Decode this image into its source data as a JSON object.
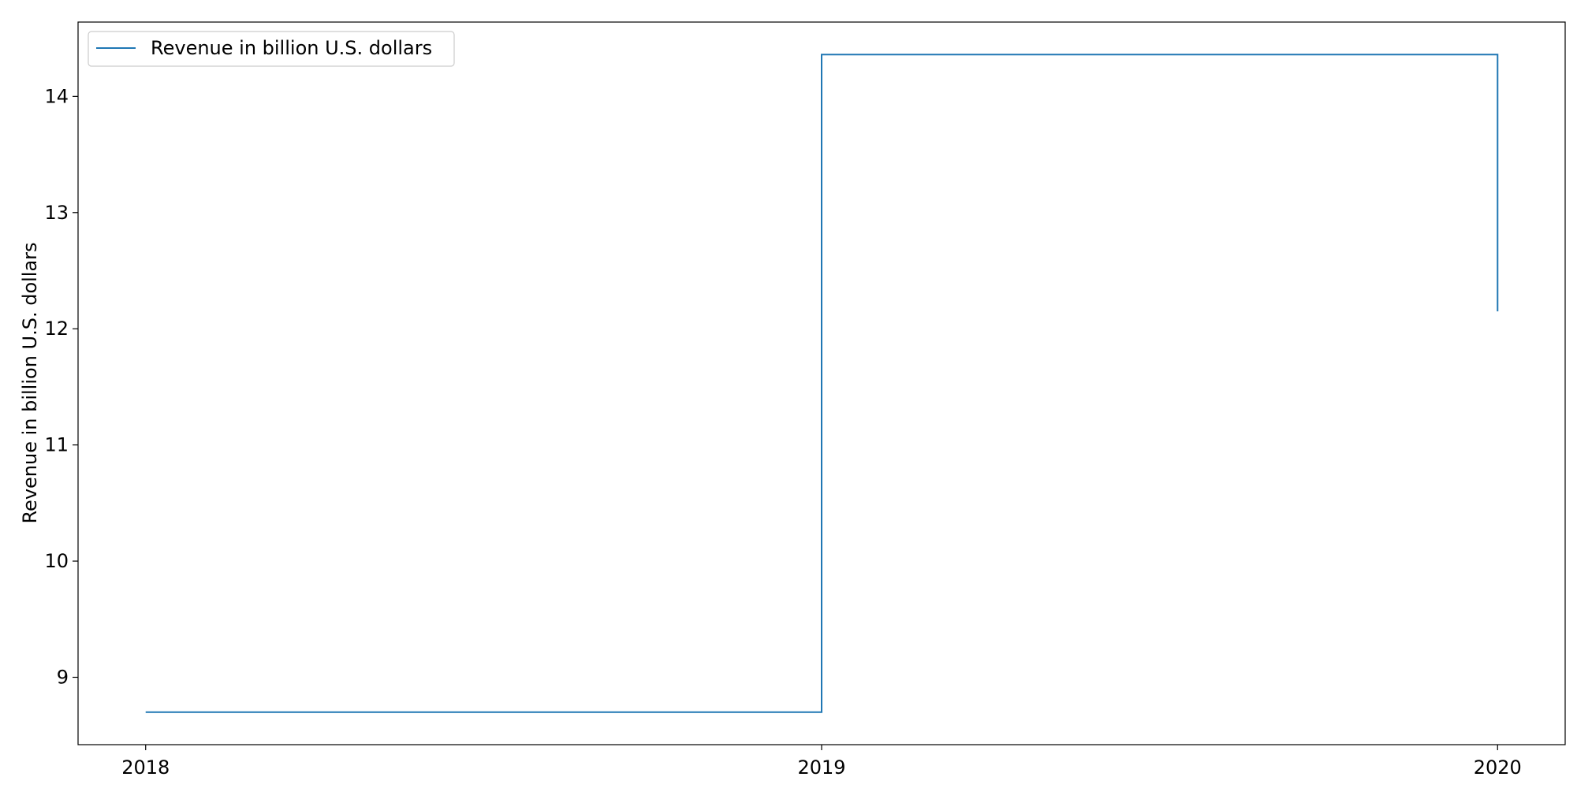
{
  "chart_data": {
    "type": "line",
    "drawstyle": "steps-post",
    "x": [
      2018,
      2019,
      2020
    ],
    "series": [
      {
        "name": "Revenue in billion U.S. dollars",
        "values": [
          8.7,
          14.36,
          12.15
        ],
        "color": "#1f77b4"
      }
    ],
    "xticks": [
      2018,
      2019,
      2020
    ],
    "yticks": [
      9,
      10,
      11,
      12,
      13,
      14
    ],
    "xlim": [
      2017.9,
      2020.1
    ],
    "ylim": [
      8.42,
      14.64
    ],
    "xlabel": "",
    "ylabel": "Revenue in billion U.S. dollars",
    "title": "",
    "grid": false,
    "legend": {
      "position": "top-left"
    }
  }
}
